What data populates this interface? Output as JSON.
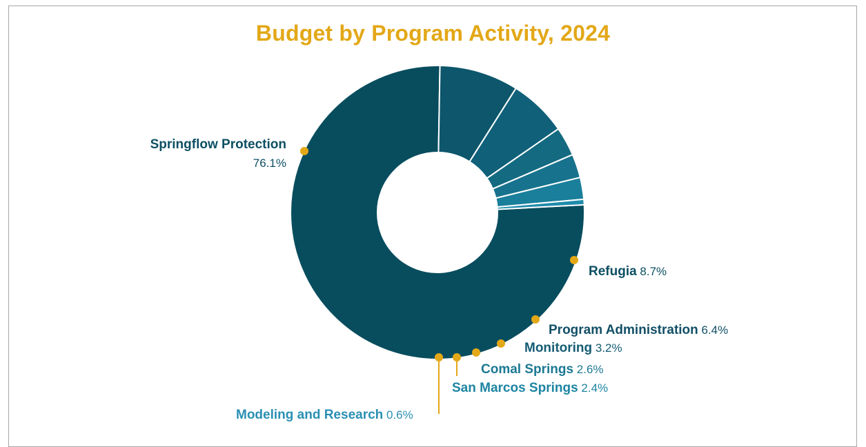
{
  "chart_data": {
    "type": "pie",
    "title": "Budget by Program Activity, 2024",
    "unit": "%",
    "categories": [
      "Springflow Protection",
      "Refugia",
      "Program Administration",
      "Monitoring",
      "Comal Springs",
      "San Marcos Springs",
      "Modeling and Research"
    ],
    "values": [
      76.1,
      8.7,
      6.4,
      3.2,
      2.6,
      2.4,
      0.6
    ],
    "value_labels": [
      "76.1%",
      "8.7%",
      "6.4%",
      "3.2%",
      "2.6%",
      "2.4%",
      "0.6%"
    ],
    "colors": [
      "#084d5e",
      "#0d566b",
      "#10607a",
      "#136a81",
      "#17738d",
      "#1a7f9b",
      "#1f8bab"
    ],
    "label_colors": [
      "#0d4f63",
      "#0d4f63",
      "#124f66",
      "#155c74",
      "#1b7893",
      "#1d84a2",
      "#2a8fb3"
    ],
    "marker_color": "#e3a818",
    "legend": "none",
    "donut": true
  }
}
